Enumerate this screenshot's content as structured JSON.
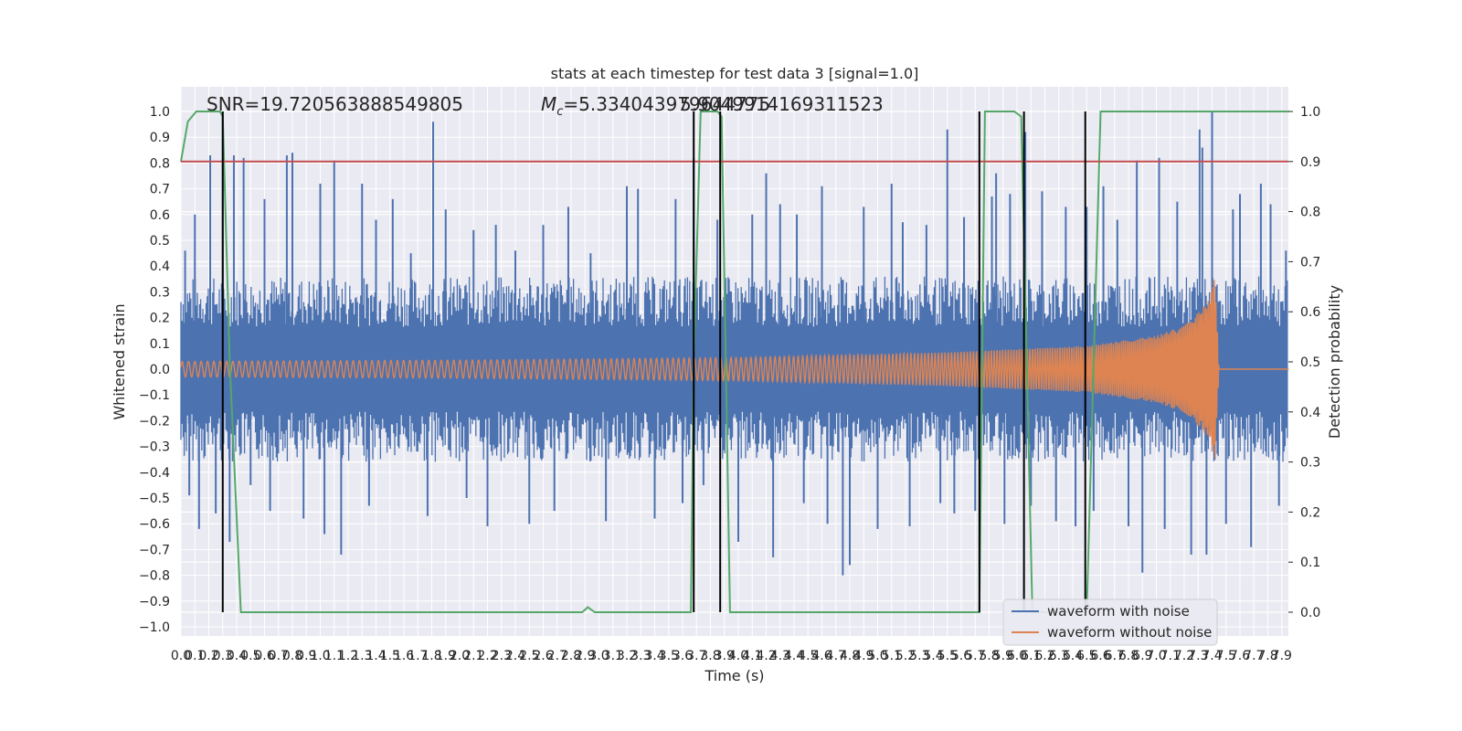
{
  "title": "stats at each timestep for test data 3 [signal=1.0]",
  "annotations": {
    "snr": "SNR=19.720563888549805",
    "mc_symbol": "M",
    "mc_sub": "c",
    "mc_value": "=5.334043979644775",
    "overlap": "5.9049914169311523"
  },
  "colors": {
    "background": "#eaeaf2",
    "grid": "#ffffff",
    "waveform_with_noise": "#4c72b0",
    "waveform_without_noise": "#dd8452",
    "detection_probability": "#55a868",
    "threshold": "#c44e52",
    "markers": "#000000"
  },
  "legend": {
    "position": "lower-right",
    "items": [
      {
        "label": "waveform with noise",
        "color": "#4c72b0"
      },
      {
        "label": "waveform without noise",
        "color": "#dd8452"
      }
    ]
  },
  "chart_data": {
    "type": "line",
    "title": "stats at each timestep for test data 3 [signal=1.0]",
    "xlabel": "Time (s)",
    "ylabel": "Whitened strain",
    "y2label": "Detection probability",
    "xlim": [
      0.0,
      7.95
    ],
    "ylim": [
      -1.05,
      1.05
    ],
    "y2lim": [
      -0.05,
      1.03
    ],
    "grid": true,
    "legend_position": "lower-right",
    "x_ticks": [
      "0.0",
      "0.1",
      "0.2",
      "0.3",
      "0.4",
      "0.5",
      "0.6",
      "0.7",
      "0.8",
      "0.9",
      "1.0",
      "1.1",
      "1.2",
      "1.3",
      "1.4",
      "1.5",
      "1.6",
      "1.7",
      "1.8",
      "1.9",
      "2.0",
      "2.1",
      "2.2",
      "2.3",
      "2.4",
      "2.5",
      "2.6",
      "2.7",
      "2.8",
      "2.9",
      "3.0",
      "3.1",
      "3.2",
      "3.3",
      "3.4",
      "3.5",
      "3.6",
      "3.7",
      "3.8",
      "3.9",
      "4.0",
      "4.1",
      "4.2",
      "4.3",
      "4.4",
      "4.5",
      "4.6",
      "4.7",
      "4.8",
      "4.9",
      "5.0",
      "5.1",
      "5.2",
      "5.3",
      "5.4",
      "5.5",
      "5.6",
      "5.7",
      "5.8",
      "5.9",
      "6.0",
      "6.1",
      "6.2",
      "6.3",
      "6.4",
      "6.5",
      "6.6",
      "6.7",
      "6.8",
      "6.9",
      "7.0",
      "7.1",
      "7.2",
      "7.3",
      "7.4",
      "7.5",
      "7.6",
      "7.7",
      "7.8",
      "7.9"
    ],
    "y_ticks": [
      "1.0",
      "0.9",
      "0.8",
      "0.7",
      "0.6",
      "0.5",
      "0.4",
      "0.3",
      "0.2",
      "0.1",
      "0.0",
      "−0.1",
      "−0.2",
      "−0.3",
      "−0.4",
      "−0.5",
      "−0.6",
      "−0.7",
      "−0.8",
      "−0.9",
      "−1.0"
    ],
    "y2_ticks": [
      "1.0",
      "0.9",
      "0.8",
      "0.7",
      "0.6",
      "0.5",
      "0.4",
      "0.3",
      "0.2",
      "0.1",
      "0.0"
    ],
    "series": [
      {
        "name": "waveform with noise",
        "axis": "left",
        "band_typical": [
          -0.3,
          0.3
        ],
        "spikes": [
          {
            "x": 0.03,
            "y": 0.46
          },
          {
            "x": 0.06,
            "y": -0.49
          },
          {
            "x": 0.1,
            "y": 0.6
          },
          {
            "x": 0.13,
            "y": -0.62
          },
          {
            "x": 0.21,
            "y": 0.83
          },
          {
            "x": 0.25,
            "y": -0.56
          },
          {
            "x": 0.38,
            "y": 0.83
          },
          {
            "x": 0.45,
            "y": 0.82
          },
          {
            "x": 0.3,
            "y": 1.0
          },
          {
            "x": 0.35,
            "y": -0.67
          },
          {
            "x": 0.5,
            "y": -0.45
          },
          {
            "x": 0.6,
            "y": 0.66
          },
          {
            "x": 0.64,
            "y": -0.55
          },
          {
            "x": 0.76,
            "y": 0.83
          },
          {
            "x": 0.8,
            "y": 0.84
          },
          {
            "x": 0.88,
            "y": -0.58
          },
          {
            "x": 1.0,
            "y": 0.72
          },
          {
            "x": 1.03,
            "y": -0.64
          },
          {
            "x": 1.1,
            "y": 0.81
          },
          {
            "x": 1.15,
            "y": -0.72
          },
          {
            "x": 1.3,
            "y": 0.72
          },
          {
            "x": 1.35,
            "y": -0.53
          },
          {
            "x": 1.4,
            "y": 0.58
          },
          {
            "x": 1.52,
            "y": 0.66
          },
          {
            "x": 1.65,
            "y": 0.45
          },
          {
            "x": 1.77,
            "y": -0.57
          },
          {
            "x": 1.81,
            "y": 0.96
          },
          {
            "x": 1.9,
            "y": 0.62
          },
          {
            "x": 2.05,
            "y": -0.5
          },
          {
            "x": 2.1,
            "y": 0.54
          },
          {
            "x": 2.2,
            "y": -0.61
          },
          {
            "x": 2.26,
            "y": 0.56
          },
          {
            "x": 2.4,
            "y": 0.46
          },
          {
            "x": 2.5,
            "y": -0.6
          },
          {
            "x": 2.6,
            "y": 0.56
          },
          {
            "x": 2.68,
            "y": -0.55
          },
          {
            "x": 2.78,
            "y": 0.63
          },
          {
            "x": 2.94,
            "y": 0.45
          },
          {
            "x": 3.05,
            "y": -0.59
          },
          {
            "x": 3.2,
            "y": 0.71
          },
          {
            "x": 3.28,
            "y": 0.7
          },
          {
            "x": 3.4,
            "y": -0.58
          },
          {
            "x": 3.55,
            "y": 0.66
          },
          {
            "x": 3.6,
            "y": -0.52
          },
          {
            "x": 3.68,
            "y": 0.82
          },
          {
            "x": 3.75,
            "y": -0.45
          },
          {
            "x": 3.85,
            "y": 0.58
          },
          {
            "x": 4.0,
            "y": -0.67
          },
          {
            "x": 4.1,
            "y": 0.6
          },
          {
            "x": 4.2,
            "y": 0.76
          },
          {
            "x": 4.25,
            "y": -0.73
          },
          {
            "x": 4.3,
            "y": 0.64
          },
          {
            "x": 4.42,
            "y": 0.6
          },
          {
            "x": 4.47,
            "y": -0.52
          },
          {
            "x": 4.6,
            "y": 0.71
          },
          {
            "x": 4.64,
            "y": -0.6
          },
          {
            "x": 4.75,
            "y": -0.8
          },
          {
            "x": 4.8,
            "y": -0.76
          },
          {
            "x": 4.9,
            "y": 0.63
          },
          {
            "x": 5.0,
            "y": -0.62
          },
          {
            "x": 5.1,
            "y": 0.72
          },
          {
            "x": 5.18,
            "y": 0.57
          },
          {
            "x": 5.23,
            "y": -0.61
          },
          {
            "x": 5.35,
            "y": 0.56
          },
          {
            "x": 5.45,
            "y": -0.52
          },
          {
            "x": 5.5,
            "y": 0.93
          },
          {
            "x": 5.55,
            "y": -0.56
          },
          {
            "x": 5.62,
            "y": 0.59
          },
          {
            "x": 5.7,
            "y": -0.55
          },
          {
            "x": 5.82,
            "y": 0.67
          },
          {
            "x": 5.85,
            "y": 0.76
          },
          {
            "x": 5.91,
            "y": -0.6
          },
          {
            "x": 5.95,
            "y": 0.68
          },
          {
            "x": 6.06,
            "y": 0.92
          },
          {
            "x": 6.1,
            "y": -0.53
          },
          {
            "x": 6.18,
            "y": 0.69
          },
          {
            "x": 6.28,
            "y": -0.59
          },
          {
            "x": 6.35,
            "y": 0.63
          },
          {
            "x": 6.42,
            "y": -0.61
          },
          {
            "x": 6.5,
            "y": 0.63
          },
          {
            "x": 6.55,
            "y": -0.55
          },
          {
            "x": 6.62,
            "y": 0.71
          },
          {
            "x": 6.72,
            "y": 0.58
          },
          {
            "x": 6.8,
            "y": -0.61
          },
          {
            "x": 6.86,
            "y": 0.81
          },
          {
            "x": 6.9,
            "y": -0.79
          },
          {
            "x": 7.02,
            "y": 0.82
          },
          {
            "x": 7.06,
            "y": -0.62
          },
          {
            "x": 7.15,
            "y": 0.65
          },
          {
            "x": 7.25,
            "y": -0.72
          },
          {
            "x": 7.31,
            "y": 0.93
          },
          {
            "x": 7.33,
            "y": 0.86
          },
          {
            "x": 7.36,
            "y": -0.72
          },
          {
            "x": 7.4,
            "y": 1.0
          },
          {
            "x": 7.5,
            "y": -0.6
          },
          {
            "x": 7.55,
            "y": 0.62
          },
          {
            "x": 7.6,
            "y": 0.68
          },
          {
            "x": 7.68,
            "y": -0.69
          },
          {
            "x": 7.75,
            "y": 0.72
          },
          {
            "x": 7.82,
            "y": 0.64
          },
          {
            "x": 7.88,
            "y": -0.53
          },
          {
            "x": 7.93,
            "y": 0.46
          }
        ]
      },
      {
        "name": "waveform without noise",
        "axis": "left",
        "description_points": [
          {
            "x": 0.0,
            "amplitude": 0.03
          },
          {
            "x": 2.0,
            "amplitude": 0.035
          },
          {
            "x": 4.0,
            "amplitude": 0.045
          },
          {
            "x": 5.5,
            "amplitude": 0.065
          },
          {
            "x": 6.5,
            "amplitude": 0.09
          },
          {
            "x": 7.0,
            "amplitude": 0.13
          },
          {
            "x": 7.2,
            "amplitude": 0.17
          },
          {
            "x": 7.3,
            "amplitude": 0.22
          },
          {
            "x": 7.38,
            "amplitude": 0.27
          },
          {
            "x": 7.42,
            "amplitude": 0.37
          },
          {
            "x": 7.45,
            "amplitude": 0.0
          },
          {
            "x": 7.95,
            "amplitude": 0.0
          }
        ]
      },
      {
        "name": "detection probability",
        "axis": "right",
        "x": [
          0.0,
          0.05,
          0.11,
          0.2,
          0.28,
          0.3,
          0.35,
          0.43,
          0.44,
          2.88,
          2.92,
          2.97,
          3.05,
          3.6,
          3.66,
          3.68,
          3.73,
          3.75,
          3.85,
          3.88,
          3.91,
          3.94,
          3.96,
          5.68,
          5.73,
          5.77,
          5.85,
          5.98,
          6.03,
          6.07,
          6.11,
          6.5,
          6.55,
          6.6,
          6.63,
          7.95
        ],
        "values": [
          0.9,
          0.98,
          1.0,
          1.0,
          1.0,
          0.99,
          0.5,
          0.0,
          0.0,
          0.0,
          0.01,
          0.0,
          0.0,
          0.0,
          0.0,
          0.5,
          1.0,
          1.0,
          1.0,
          0.99,
          0.5,
          0.0,
          0.0,
          0.0,
          0.0,
          1.0,
          1.0,
          1.0,
          0.99,
          0.5,
          0.0,
          0.0,
          0.5,
          1.0,
          1.0,
          1.0
        ]
      },
      {
        "name": "threshold",
        "axis": "right",
        "values": [
          0.9
        ]
      }
    ],
    "vertical_markers_x": [
      0.3,
      3.68,
      3.87,
      5.73,
      6.05,
      6.49
    ]
  }
}
